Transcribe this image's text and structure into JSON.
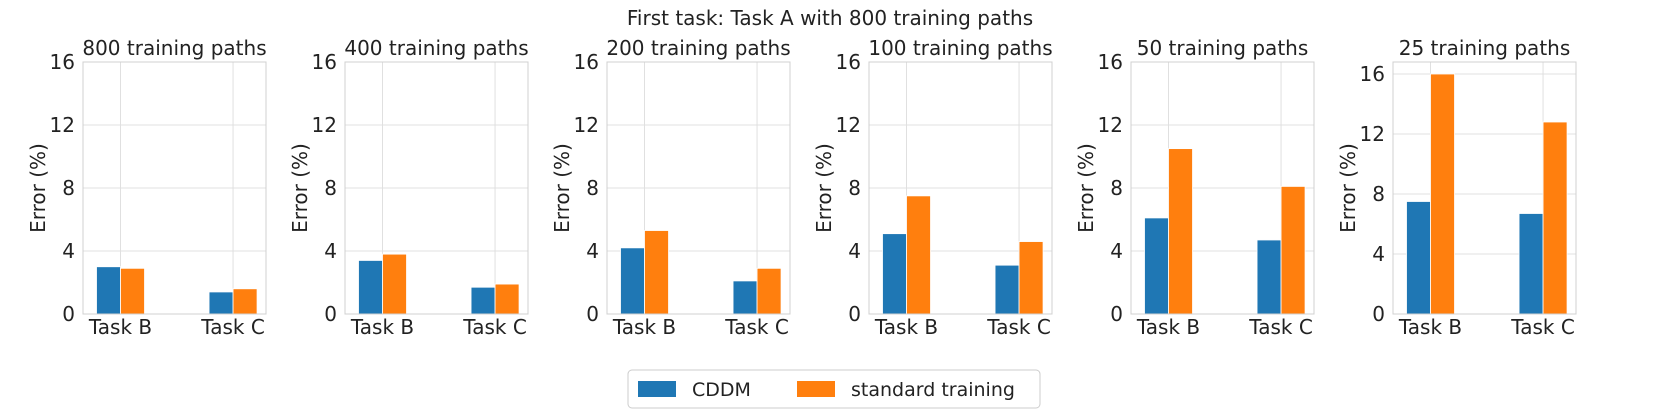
{
  "figure": {
    "suptitle": "First task: Task A with 800 training paths",
    "legend": {
      "placement": "bottom-center",
      "entries": [
        {
          "label": "CDDM",
          "color": "#1f77b4"
        },
        {
          "label": "standard training",
          "color": "#ff7f0e"
        }
      ]
    }
  },
  "chart_data": [
    {
      "type": "bar",
      "title": "800 training paths",
      "categories": [
        "Task B",
        "Task C"
      ],
      "series": [
        {
          "name": "CDDM",
          "values": [
            3.0,
            1.4
          ]
        },
        {
          "name": "standard training",
          "values": [
            2.9,
            1.6
          ]
        }
      ],
      "xlabel": "",
      "ylabel": "Error (%)",
      "ylim": [
        0,
        16
      ],
      "yticks": [
        0,
        4,
        8,
        12,
        16
      ],
      "grid": true
    },
    {
      "type": "bar",
      "title": "400 training paths",
      "categories": [
        "Task B",
        "Task C"
      ],
      "series": [
        {
          "name": "CDDM",
          "values": [
            3.4,
            1.7
          ]
        },
        {
          "name": "standard training",
          "values": [
            3.8,
            1.9
          ]
        }
      ],
      "xlabel": "",
      "ylabel": "Error (%)",
      "ylim": [
        0,
        16
      ],
      "yticks": [
        0,
        4,
        8,
        12,
        16
      ],
      "grid": true
    },
    {
      "type": "bar",
      "title": "200 training paths",
      "categories": [
        "Task B",
        "Task C"
      ],
      "series": [
        {
          "name": "CDDM",
          "values": [
            4.2,
            2.1
          ]
        },
        {
          "name": "standard training",
          "values": [
            5.3,
            2.9
          ]
        }
      ],
      "xlabel": "",
      "ylabel": "Error (%)",
      "ylim": [
        0,
        16
      ],
      "yticks": [
        0,
        4,
        8,
        12,
        16
      ],
      "grid": true
    },
    {
      "type": "bar",
      "title": "100 training paths",
      "categories": [
        "Task B",
        "Task C"
      ],
      "series": [
        {
          "name": "CDDM",
          "values": [
            5.1,
            3.1
          ]
        },
        {
          "name": "standard training",
          "values": [
            7.5,
            4.6
          ]
        }
      ],
      "xlabel": "",
      "ylabel": "Error (%)",
      "ylim": [
        0,
        16
      ],
      "yticks": [
        0,
        4,
        8,
        12,
        16
      ],
      "grid": true
    },
    {
      "type": "bar",
      "title": "50 training paths",
      "categories": [
        "Task B",
        "Task C"
      ],
      "series": [
        {
          "name": "CDDM",
          "values": [
            6.1,
            4.7
          ]
        },
        {
          "name": "standard training",
          "values": [
            10.5,
            8.1
          ]
        }
      ],
      "xlabel": "",
      "ylabel": "Error (%)",
      "ylim": [
        0,
        16
      ],
      "yticks": [
        0,
        4,
        8,
        12,
        16
      ],
      "grid": true
    },
    {
      "type": "bar",
      "title": "25 training paths",
      "categories": [
        "Task B",
        "Task C"
      ],
      "series": [
        {
          "name": "CDDM",
          "values": [
            7.5,
            6.7
          ]
        },
        {
          "name": "standard training",
          "values": [
            16.0,
            12.8
          ]
        }
      ],
      "xlabel": "",
      "ylabel": "Error (%)",
      "ylim": [
        0,
        16.8
      ],
      "yticks": [
        0,
        4,
        8,
        12,
        16
      ],
      "grid": true
    }
  ]
}
